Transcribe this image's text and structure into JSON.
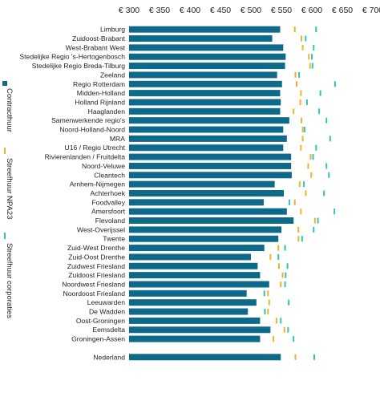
{
  "chart_data": {
    "type": "bar",
    "orientation": "horizontal",
    "title": "",
    "xlim": [
      300,
      700
    ],
    "x_ticks": [
      300,
      350,
      400,
      450,
      500,
      550,
      600,
      650,
      700
    ],
    "x_tick_labels": [
      "€ 300",
      "€ 350",
      "€ 400",
      "€ 450",
      "€ 500",
      "€ 550",
      "€ 600",
      "€ 650",
      "€ 700"
    ],
    "x_axis_position": "top",
    "grid": false,
    "legend_position": "left",
    "categories": [
      "Limburg",
      "Zuidoost-Brabant",
      "West-Brabant West",
      "Stedelijke Regio 's-Hertogenbosch",
      "Stedelijke Regio Breda-Tilburg",
      "Zeeland",
      "Regio Rotterdam",
      "Midden-Holland",
      "Holland Rijnland",
      "Haaglanden",
      "Samenwerkende regio's",
      "Noord-Holland-Noord",
      "MRA",
      "U16 / Regio Utrecht",
      "Rivierenlanden / Fruitdelta",
      "Noord-Veluwe",
      "Cleantech",
      "Arnhem-Nijmegen",
      "Achterhoek",
      "Foodvalley",
      "Amersfoort",
      "Flevoland",
      "West-Overijssel",
      "Twente",
      "Zuid-West Drenthe",
      "Zuid-Oost Drenthe",
      "Zuidwest Friesland",
      "Zuidoost Friesland",
      "Noordwest Friesland",
      "Noordoost Friesland",
      "Leeuwarden",
      "De Wadden",
      "Oost-Groningen",
      "Eemsdelta",
      "Groningen-Assen",
      "",
      "Nederland"
    ],
    "series": [
      {
        "name": "Contracthuur",
        "color": "#0e6a8a",
        "mark": "bar",
        "values": [
          548,
          535,
          553,
          557,
          556,
          543,
          551,
          548,
          549,
          548,
          563,
          553,
          559,
          553,
          566,
          566,
          567,
          539,
          554,
          521,
          559,
          570,
          550,
          545,
          522,
          500,
          511,
          515,
          530,
          493,
          509,
          495,
          515,
          532,
          515,
          null,
          549
        ]
      },
      {
        "name": "Streefhuur NPA23",
        "color": "#f0b323",
        "mark": "tick",
        "values": [
          572,
          583,
          585,
          595,
          597,
          573,
          575,
          582,
          581,
          570,
          583,
          585,
          585,
          582,
          598,
          594,
          599,
          580,
          590,
          572,
          582,
          605,
          578,
          578,
          545,
          532,
          546,
          552,
          549,
          528,
          530,
          528,
          542,
          555,
          537,
          null,
          573
        ]
      },
      {
        "name": "Streefhuur corporaties",
        "color": "#2ec4b6",
        "mark": "tick",
        "values": [
          607,
          590,
          603,
          600,
          601,
          579,
          638,
          614,
          592,
          612,
          624,
          588,
          630,
          607,
          602,
          624,
          628,
          587,
          620,
          563,
          637,
          610,
          603,
          584,
          556,
          545,
          560,
          557,
          556,
          522,
          562,
          523,
          549,
          561,
          570,
          null,
          604
        ]
      }
    ]
  }
}
